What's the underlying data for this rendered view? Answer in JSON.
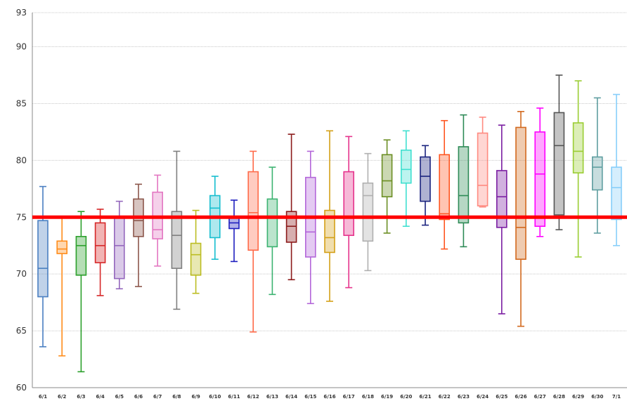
{
  "chart_data": {
    "type": "boxplot",
    "title": "",
    "xlabel": "",
    "ylabel": "",
    "ylim": [
      60,
      93
    ],
    "yticks": [
      60,
      65,
      70,
      75,
      80,
      85,
      90,
      93
    ],
    "grid": true,
    "reference_line": {
      "value": 75.0,
      "color": "#ff0000"
    },
    "categories": [
      "6/1",
      "6/2",
      "6/3",
      "6/4",
      "6/5",
      "6/6",
      "6/7",
      "6/8",
      "6/9",
      "6/10",
      "6/11",
      "6/12",
      "6/13",
      "6/14",
      "6/15",
      "6/16",
      "6/17",
      "6/18",
      "6/19",
      "6/20",
      "6/21",
      "6/22",
      "6/23",
      "6/24",
      "6/25",
      "6/26",
      "6/27",
      "6/28",
      "6/29",
      "6/30",
      "7/1"
    ],
    "colors": [
      "#4a7fc1",
      "#ff8c1a",
      "#2ca02c",
      "#d62728",
      "#9467bd",
      "#8c564b",
      "#e377c2",
      "#7f7f7f",
      "#bcbd22",
      "#17becf",
      "#1f1fbf",
      "#ff6b4a",
      "#3cb371",
      "#8b1a1a",
      "#b366d9",
      "#d4a017",
      "#e6338c",
      "#b0b0b0",
      "#6b8e23",
      "#40e0d0",
      "#1a237e",
      "#ff5722",
      "#2e8b57",
      "#ff8a80",
      "#7b1fa2",
      "#d2691e",
      "#ff00ff",
      "#555555",
      "#9acd32",
      "#5f9ea0",
      "#87cefa"
    ],
    "series": [
      {
        "min": 63.6,
        "q1": 68.0,
        "median": 70.5,
        "q3": 74.7,
        "max": 77.7
      },
      {
        "min": 62.8,
        "q1": 71.8,
        "median": 72.2,
        "q3": 72.9,
        "max": 75.0
      },
      {
        "min": 61.4,
        "q1": 69.9,
        "median": 72.5,
        "q3": 73.3,
        "max": 75.5
      },
      {
        "min": 68.1,
        "q1": 71.0,
        "median": 72.5,
        "q3": 74.5,
        "max": 75.7
      },
      {
        "min": 68.7,
        "q1": 69.6,
        "median": 72.5,
        "q3": 75.0,
        "max": 76.4
      },
      {
        "min": 68.9,
        "q1": 73.3,
        "median": 74.7,
        "q3": 76.6,
        "max": 77.9
      },
      {
        "min": 70.7,
        "q1": 73.1,
        "median": 73.9,
        "q3": 77.2,
        "max": 78.7
      },
      {
        "min": 66.9,
        "q1": 70.5,
        "median": 73.4,
        "q3": 75.5,
        "max": 80.8
      },
      {
        "min": 68.3,
        "q1": 69.9,
        "median": 71.7,
        "q3": 72.7,
        "max": 75.6
      },
      {
        "min": 71.3,
        "q1": 73.2,
        "median": 75.8,
        "q3": 76.9,
        "max": 78.6
      },
      {
        "min": 71.1,
        "q1": 74.0,
        "median": 74.5,
        "q3": 75.0,
        "max": 76.5
      },
      {
        "min": 64.9,
        "q1": 72.1,
        "median": 75.4,
        "q3": 79.0,
        "max": 80.8
      },
      {
        "min": 68.2,
        "q1": 72.4,
        "median": 75.0,
        "q3": 76.6,
        "max": 79.4
      },
      {
        "min": 69.5,
        "q1": 72.8,
        "median": 74.2,
        "q3": 75.5,
        "max": 82.3
      },
      {
        "min": 67.4,
        "q1": 71.5,
        "median": 73.7,
        "q3": 78.5,
        "max": 80.8
      },
      {
        "min": 67.6,
        "q1": 71.9,
        "median": 73.2,
        "q3": 75.6,
        "max": 82.6
      },
      {
        "min": 68.8,
        "q1": 73.4,
        "median": 75.0,
        "q3": 79.0,
        "max": 82.1
      },
      {
        "min": 70.3,
        "q1": 72.9,
        "median": 76.9,
        "q3": 78.0,
        "max": 80.6
      },
      {
        "min": 73.6,
        "q1": 76.8,
        "median": 78.2,
        "q3": 80.5,
        "max": 81.8
      },
      {
        "min": 74.2,
        "q1": 78.0,
        "median": 79.2,
        "q3": 80.9,
        "max": 82.6
      },
      {
        "min": 74.3,
        "q1": 76.4,
        "median": 78.6,
        "q3": 80.3,
        "max": 81.3
      },
      {
        "min": 72.2,
        "q1": 74.8,
        "median": 75.3,
        "q3": 80.5,
        "max": 83.5
      },
      {
        "min": 72.4,
        "q1": 74.5,
        "median": 76.9,
        "q3": 81.2,
        "max": 84.0
      },
      {
        "min": 75.9,
        "q1": 76.0,
        "median": 77.8,
        "q3": 82.4,
        "max": 83.8
      },
      {
        "min": 66.5,
        "q1": 74.1,
        "median": 76.8,
        "q3": 79.1,
        "max": 83.1
      },
      {
        "min": 65.4,
        "q1": 71.3,
        "median": 74.1,
        "q3": 82.9,
        "max": 84.3
      },
      {
        "min": 73.3,
        "q1": 74.2,
        "median": 78.8,
        "q3": 82.5,
        "max": 84.6
      },
      {
        "min": 73.9,
        "q1": 75.2,
        "median": 81.3,
        "q3": 84.2,
        "max": 87.5
      },
      {
        "min": 71.5,
        "q1": 78.9,
        "median": 80.8,
        "q3": 83.3,
        "max": 87.0
      },
      {
        "min": 73.6,
        "q1": 77.4,
        "median": 79.4,
        "q3": 80.3,
        "max": 85.5
      },
      {
        "min": 72.5,
        "q1": 74.8,
        "median": 77.6,
        "q3": 79.4,
        "max": 85.8
      }
    ]
  }
}
